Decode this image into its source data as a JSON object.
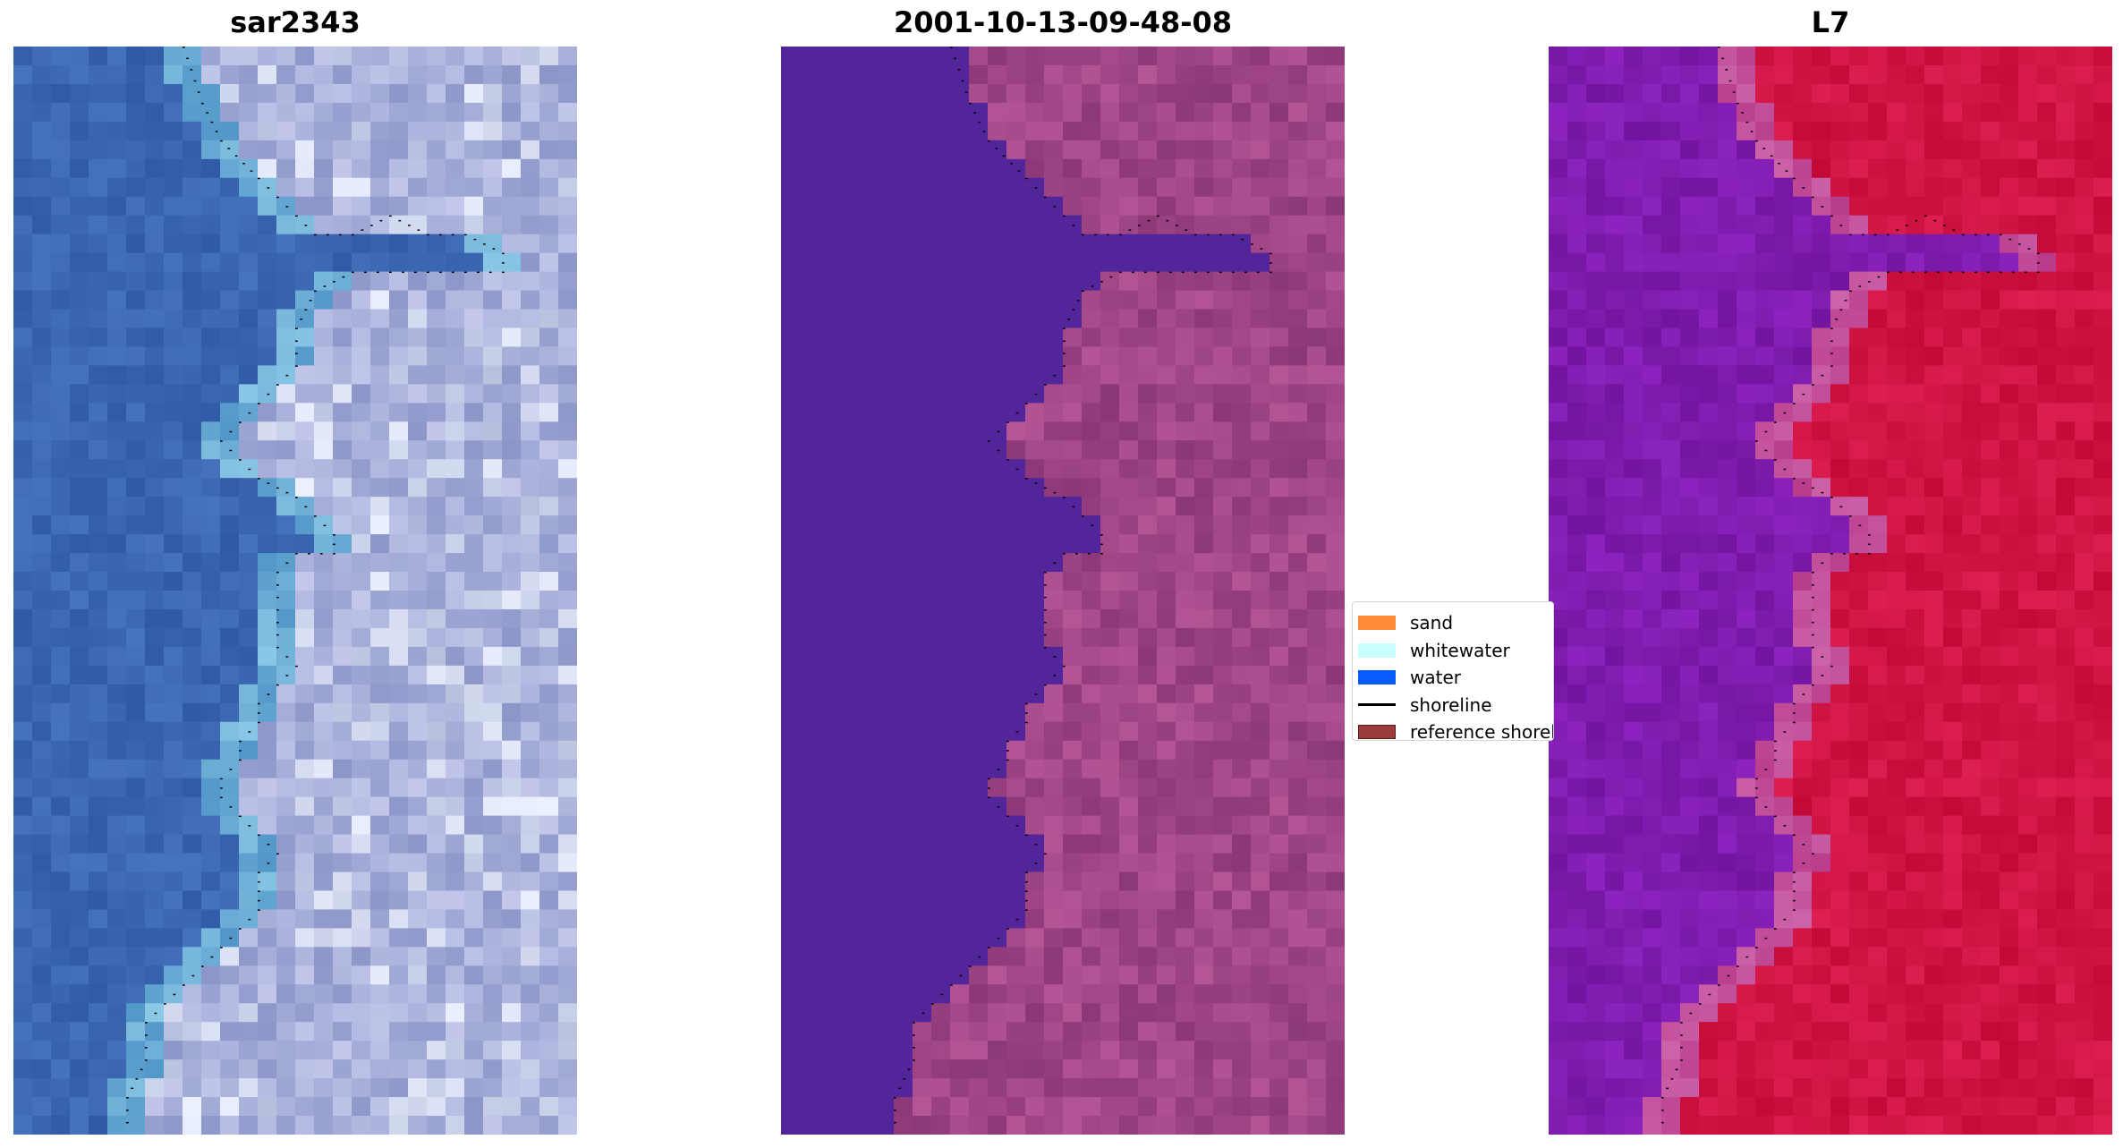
{
  "panels": {
    "rgb": {
      "title": "sar2343"
    },
    "classified": {
      "title": "2001-10-13-09-48-08"
    },
    "mndwi": {
      "title": "L7"
    }
  },
  "legend": {
    "items": [
      {
        "label": "sand",
        "kind": "patch",
        "color": "#ff8c3a"
      },
      {
        "label": "whitewater",
        "kind": "patch",
        "color": "#c8fffc"
      },
      {
        "label": "water",
        "kind": "patch",
        "color": "#0a5cff"
      },
      {
        "label": "shoreline",
        "kind": "line",
        "color": "#000000"
      },
      {
        "label": "reference shoreline",
        "kind": "patch",
        "color": "#9b3b3b"
      }
    ]
  },
  "colors": {
    "rgb_water": "#3a64b0",
    "rgb_land": "#a8b0d8",
    "classified_water": "#53259a",
    "classified_land": "#a24a8e",
    "mndwi_water": "#7a1ea8",
    "mndwi_land": "#c8103c",
    "shoreline_dots": "#000000"
  }
}
